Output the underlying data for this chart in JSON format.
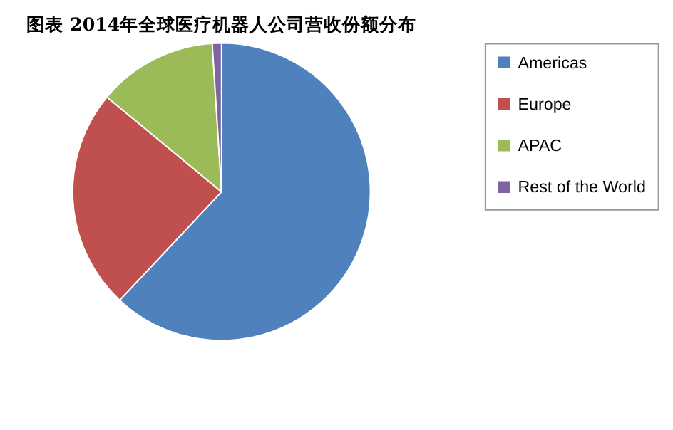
{
  "chart_data": {
    "type": "pie",
    "title": "图表    2014年全球医疗机器人公司营收份额分布",
    "categories": [
      "Americas",
      "Europe",
      "APAC",
      "Rest of the World"
    ],
    "values": [
      62,
      24,
      13,
      1
    ],
    "colors": [
      "#4f81bd",
      "#c0504d",
      "#9bbb59",
      "#8064a2"
    ],
    "legend": "right"
  }
}
